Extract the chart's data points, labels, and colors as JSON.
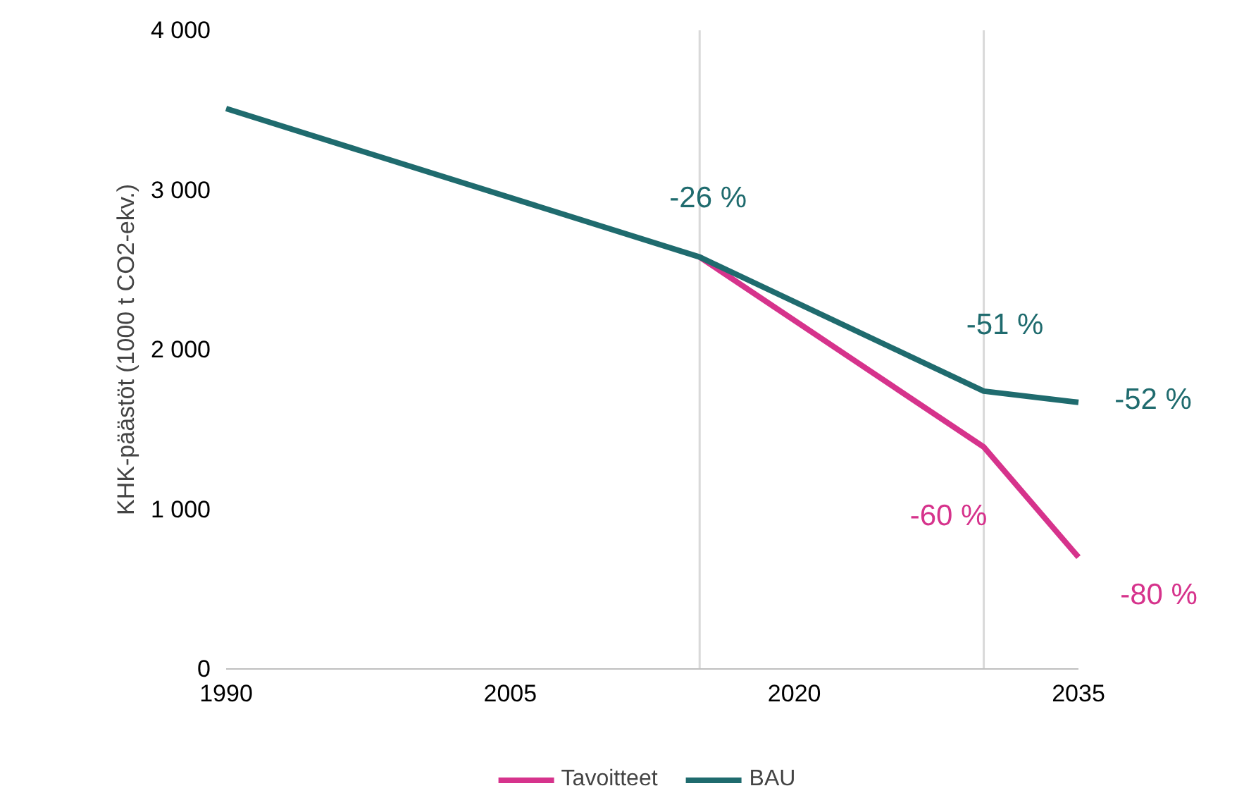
{
  "chart_data": {
    "type": "line",
    "ylabel": "KHK-päästöt (1000 t CO2-ekv.)",
    "xlim": [
      1990,
      2035
    ],
    "xticks": [
      1990,
      2005,
      2020,
      2035
    ],
    "ylim": [
      0,
      4000
    ],
    "yticks": [
      0,
      {
        "value": 1000,
        "label": "1 000"
      },
      {
        "value": 2000,
        "label": "2 000"
      },
      {
        "value": 3000,
        "label": "3 000"
      },
      {
        "value": 4000,
        "label": "4 000"
      }
    ],
    "grid": false,
    "legend": "bottom",
    "marker": "none",
    "line_style": "solid",
    "series": [
      {
        "name": "Tavoitteet",
        "color": "#d6338c",
        "x": [
          2015,
          2030,
          2035
        ],
        "values": [
          2580,
          1390,
          700
        ]
      },
      {
        "name": "BAU",
        "color": "#1f6b6e",
        "x": [
          1990,
          2015,
          2030,
          2035
        ],
        "values": [
          3510,
          2580,
          1740,
          1670
        ]
      }
    ],
    "ref_lines": [
      {
        "axis": "x",
        "value": 2015,
        "label": null,
        "color": "#d9d9d9"
      },
      {
        "axis": "x",
        "value": 2030,
        "label": null,
        "color": "#d9d9d9"
      }
    ],
    "annotations": [
      {
        "text": "-26 %",
        "x": 2015,
        "y": 2580
      },
      {
        "text": "-51 %",
        "x": 2030,
        "y": 1740
      },
      {
        "text": "-52 %",
        "x": 2035,
        "y": 1670
      },
      {
        "text": "-60 %",
        "x": 2030,
        "y": 1390
      },
      {
        "text": "-80 %",
        "x": 2035,
        "y": 700
      }
    ]
  }
}
